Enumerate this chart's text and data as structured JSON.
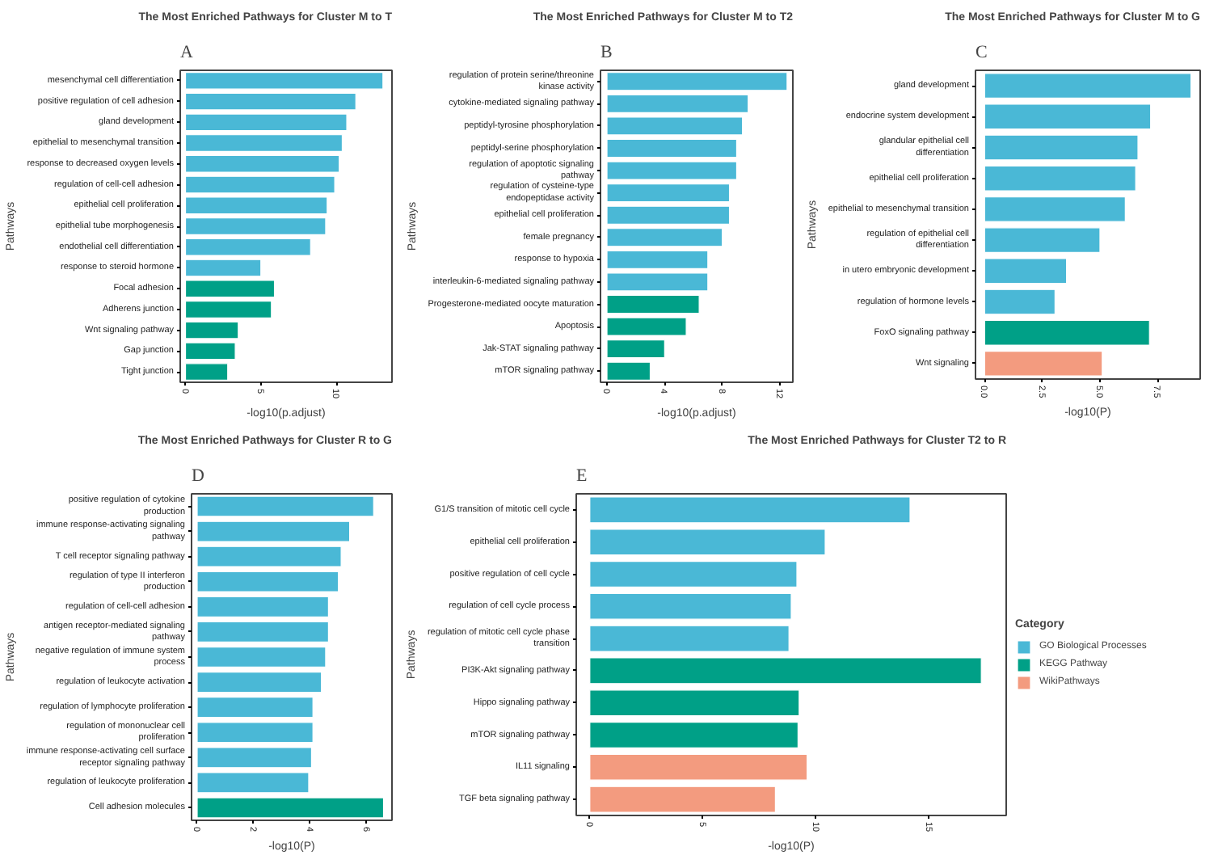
{
  "chart_data": [
    {
      "type": "bar",
      "orientation": "horizontal",
      "title": "The Most Enriched Pathways for Cluster M to T",
      "xlabel": "-log10(p.adjust)",
      "ylabel": "Pathways",
      "annotations": [
        "A"
      ],
      "grid": false,
      "legend": false,
      "categories": [
        "mesenchymal cell differentiation",
        "positive regulation of cell adhesion",
        "gland development",
        "epithelial to mesenchymal transition",
        "response to decreased oxygen levels",
        "regulation of cell-cell adhesion",
        "epithelial cell proliferation",
        "epithelial tube morphogenesis",
        "endothelial cell differentiation",
        "response to steroid hormone",
        "Focal adhesion",
        "Adherens junction",
        "Wnt signaling pathway",
        "Gap junction",
        "Tight junction"
      ],
      "series": [
        {
          "color": "#4ab8d6",
          "values": [
            13.1,
            11.3,
            10.7,
            10.4,
            10.2,
            9.9,
            9.4,
            9.3,
            8.3,
            5.0,
            null,
            null,
            null,
            null,
            null
          ]
        },
        {
          "color": "#00a087",
          "values": [
            null,
            null,
            null,
            null,
            null,
            null,
            null,
            null,
            null,
            null,
            5.9,
            5.7,
            3.5,
            3.3,
            2.8
          ]
        }
      ],
      "xlim": [
        -0.35,
        13.7
      ],
      "xticks": [
        0,
        5,
        10
      ]
    },
    {
      "type": "bar",
      "orientation": "horizontal",
      "title": "The Most Enriched Pathways for Cluster M to T2",
      "xlabel": "-log10(p.adjust)",
      "ylabel": "Pathways",
      "annotations": [
        "B"
      ],
      "grid": false,
      "legend": false,
      "categories": [
        "regulation of protein serine/threonine kinase activity",
        "cytokine-mediated signaling pathway",
        "peptidyl-tyrosine phosphorylation",
        "peptidyl-serine phosphorylation",
        "regulation of apoptotic signaling pathway",
        "regulation of cysteine-type endopeptidase activity",
        "epithelial cell proliferation",
        "female pregnancy",
        "response to hypoxia",
        "interleukin-6-mediated signaling pathway",
        "Progesterone-mediated oocyte maturation",
        "Apoptosis",
        "Jak-STAT signaling pathway",
        "mTOR signaling pathway"
      ],
      "series": [
        {
          "color": "#4ab8d6",
          "values": [
            12.5,
            9.8,
            9.4,
            9.0,
            9.0,
            8.5,
            8.5,
            8.0,
            7.0,
            7.0,
            null,
            null,
            null,
            null
          ]
        },
        {
          "color": "#00a087",
          "values": [
            null,
            null,
            null,
            null,
            null,
            null,
            null,
            null,
            null,
            null,
            6.4,
            5.5,
            4.0,
            3.0
          ]
        }
      ],
      "xlim": [
        -0.45,
        12.9
      ],
      "xticks": [
        0,
        4,
        8,
        12
      ]
    },
    {
      "type": "bar",
      "orientation": "horizontal",
      "title": "The Most Enriched Pathways for Cluster M to G",
      "xlabel": "-log10(P)",
      "ylabel": "Pathways",
      "annotations": [
        "C"
      ],
      "grid": false,
      "legend": false,
      "categories": [
        "gland development",
        "endocrine system development",
        "glandular epithelial cell differentiation",
        "epithelial cell proliferation",
        "epithelial to mesenchymal transition",
        "regulation of epithelial cell differentiation",
        "in utero embryonic development",
        "regulation of hormone levels",
        "FoxO signaling pathway",
        "Wnt signaling"
      ],
      "series": [
        {
          "color": "#4ab8d6",
          "values": [
            8.95,
            7.2,
            6.65,
            6.55,
            6.1,
            5.0,
            3.55,
            3.05,
            null,
            null
          ]
        },
        {
          "color": "#00a087",
          "values": [
            null,
            null,
            null,
            null,
            null,
            null,
            null,
            null,
            7.15,
            null
          ]
        },
        {
          "color": "#f39b7f",
          "values": [
            null,
            null,
            null,
            null,
            null,
            null,
            null,
            null,
            null,
            5.1
          ]
        }
      ],
      "xlim": [
        -0.4,
        9.35
      ],
      "xticks": [
        {
          "value": 0,
          "label": "0.0"
        },
        {
          "value": 2.5,
          "label": "2.5"
        },
        {
          "value": 5,
          "label": "5.0"
        },
        {
          "value": 7.5,
          "label": "7.5"
        }
      ]
    },
    {
      "type": "bar",
      "orientation": "horizontal",
      "title": "The Most Enriched Pathways for Cluster R to G",
      "xlabel": "-log10(P)",
      "ylabel": "Pathways",
      "annotations": [
        "D"
      ],
      "grid": false,
      "legend": false,
      "categories": [
        "positive regulation of cytokine production",
        "immune response-activating signaling pathway",
        "T cell receptor signaling pathway",
        "regulation of type II interferon production",
        "regulation of cell-cell adhesion",
        "antigen receptor-mediated signaling pathway",
        "negative regulation of immune system process",
        "regulation of leukocyte activation",
        "regulation of lymphocyte proliferation",
        "regulation of mononuclear cell proliferation",
        "immune response-activating cell surface receptor signaling pathway",
        "regulation of leukocyte proliferation",
        "Cell adhesion molecules"
      ],
      "series": [
        {
          "color": "#4ab8d6",
          "values": [
            6.25,
            5.4,
            5.1,
            5.0,
            4.65,
            4.65,
            4.55,
            4.4,
            4.1,
            4.1,
            4.05,
            3.95,
            null
          ]
        },
        {
          "color": "#00a087",
          "values": [
            null,
            null,
            null,
            null,
            null,
            null,
            null,
            null,
            null,
            null,
            null,
            null,
            6.6
          ]
        }
      ],
      "xlim": [
        -0.2,
        6.9
      ],
      "xticks": [
        0,
        2,
        4,
        6
      ]
    },
    {
      "type": "bar",
      "orientation": "horizontal",
      "title": "The Most Enriched Pathways for Cluster T2 to R",
      "xlabel": "-log10(P)",
      "ylabel": "Pathways",
      "annotations": [
        "E"
      ],
      "grid": false,
      "legend": "right",
      "legend_title": "Category",
      "categories": [
        "G1/S transition of mitotic cell cycle",
        "epithelial cell proliferation",
        "positive regulation of cell cycle",
        "regulation of cell cycle process",
        "regulation of mitotic cell cycle phase transition",
        "PI3K-Akt signaling pathway",
        "Hippo signaling pathway",
        "mTOR signaling pathway",
        "IL11 signaling",
        "TGF beta signaling pathway"
      ],
      "series": [
        {
          "name": "GO Biological Processes",
          "color": "#4ab8d6",
          "values": [
            14.15,
            10.4,
            9.15,
            8.9,
            8.8,
            null,
            null,
            null,
            null,
            null
          ]
        },
        {
          "name": "KEGG Pathway",
          "color": "#00a087",
          "values": [
            null,
            null,
            null,
            null,
            null,
            17.3,
            9.25,
            9.2,
            null,
            null
          ]
        },
        {
          "name": "WikiPathways",
          "color": "#f39b7f",
          "values": [
            null,
            null,
            null,
            null,
            null,
            null,
            null,
            null,
            9.6,
            8.2
          ]
        }
      ],
      "xlim": [
        -0.6,
        18.4
      ],
      "xticks": [
        0,
        5,
        10,
        15
      ]
    }
  ]
}
